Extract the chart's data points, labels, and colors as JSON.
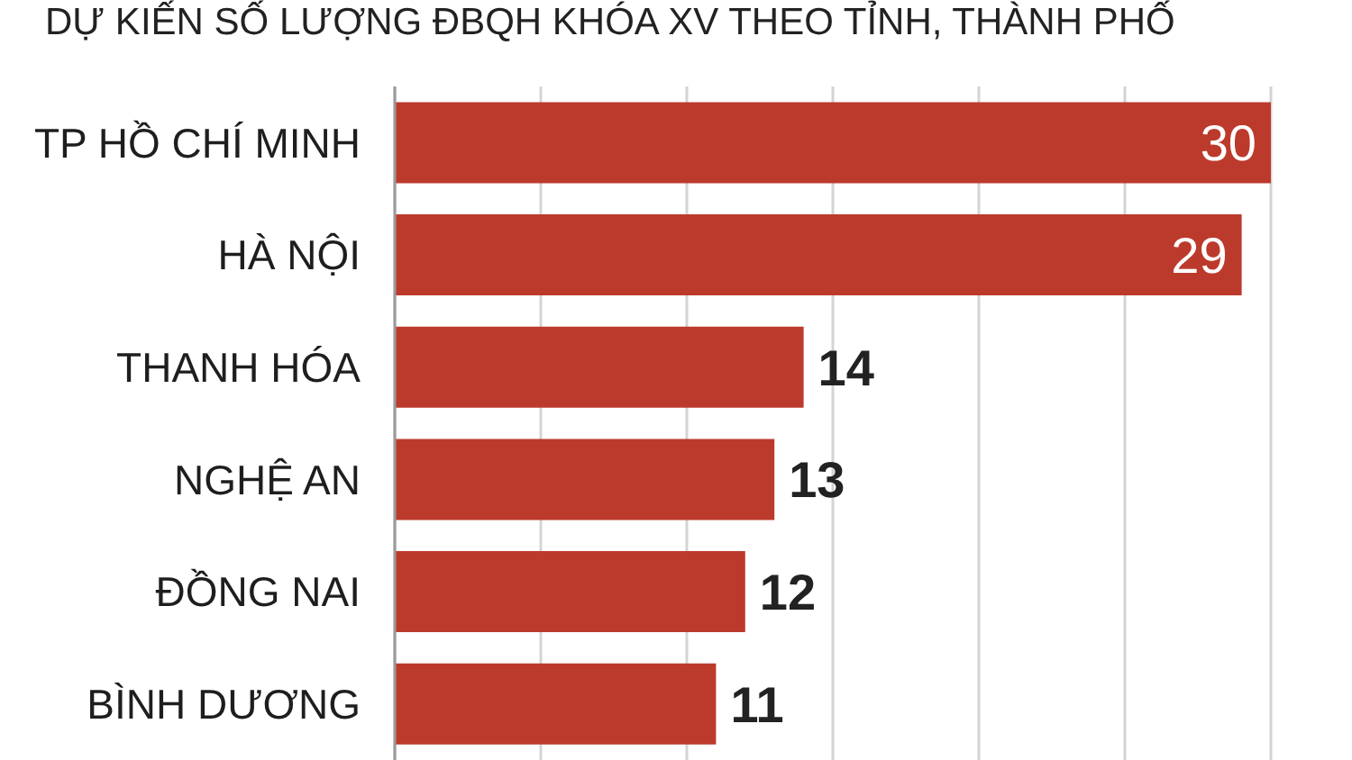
{
  "chart_data": {
    "type": "bar",
    "orientation": "horizontal",
    "title": "DỰ KIẾN SỐ LƯỢNG ĐBQH KHÓA XV THEO TỈNH, THÀNH PHỐ",
    "categories": [
      "TP HỒ CHÍ MINH",
      "HÀ NỘI",
      "THANH HÓA",
      "NGHỆ AN",
      "ĐỒNG NAI",
      "BÌNH DƯƠNG"
    ],
    "values": [
      30,
      29,
      14,
      13,
      12,
      11
    ],
    "color": "#bc3a2c",
    "xlim": [
      0,
      30
    ],
    "grid": "x",
    "tick_labels": "y",
    "data_labels": true
  }
}
